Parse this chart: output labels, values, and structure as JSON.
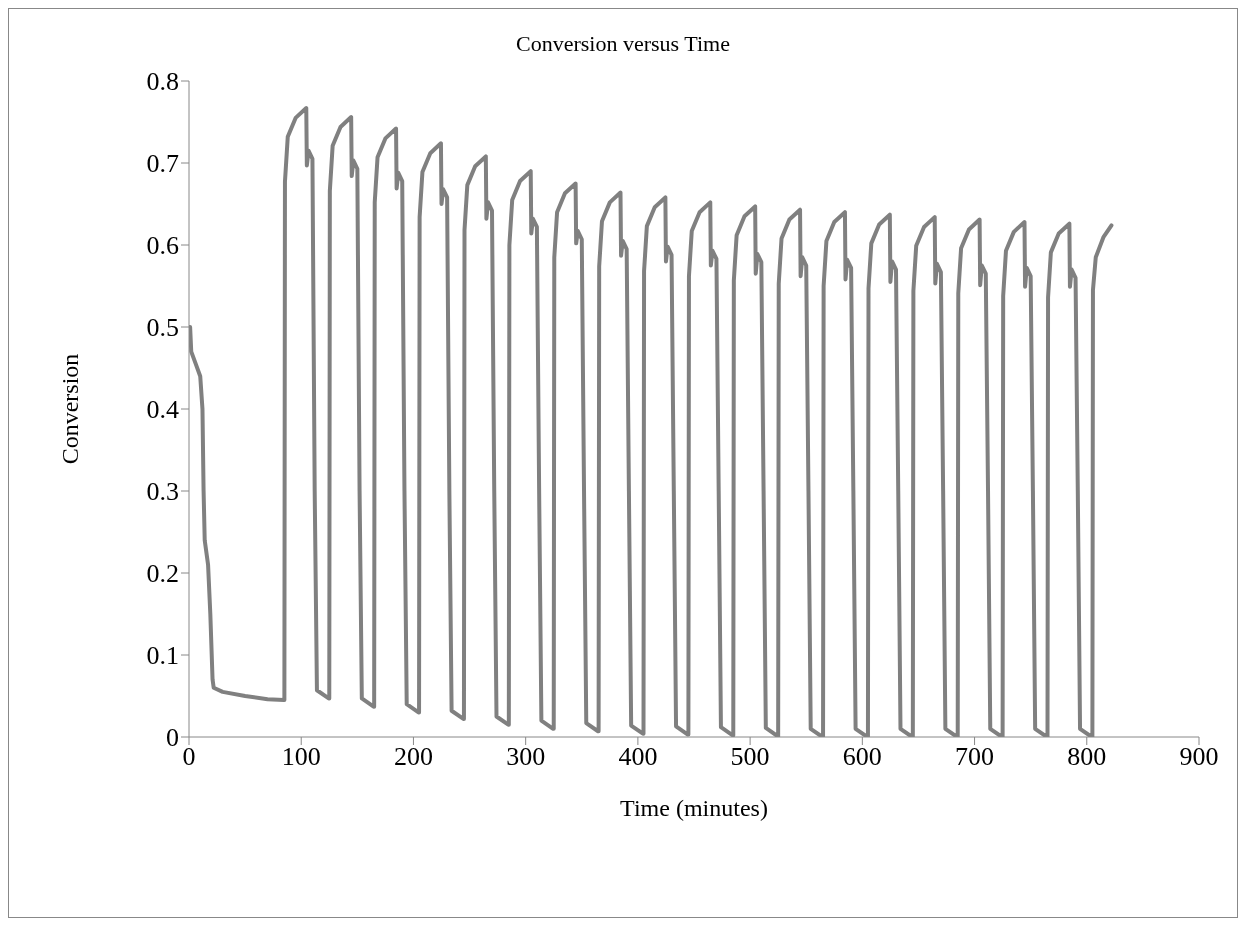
{
  "chart_data": {
    "type": "line",
    "title": "Conversion versus Time",
    "xlabel": "Time (minutes)",
    "ylabel": "Conversion",
    "xlim": [
      0,
      900
    ],
    "xticks": [
      0,
      100,
      200,
      300,
      400,
      500,
      600,
      700,
      800,
      900
    ],
    "ylim": [
      0,
      0.8
    ],
    "yticks": [
      0,
      0.1,
      0.2,
      0.3,
      0.4,
      0.5,
      0.6,
      0.7,
      0.8
    ],
    "grid": false,
    "marker": "none",
    "line_style": "solid",
    "x": [
      0,
      1,
      2,
      6,
      10,
      12,
      13,
      14,
      17,
      19,
      21,
      22,
      30,
      50,
      70,
      84.5,
      85,
      85.5,
      88,
      95,
      104.5,
      105,
      106.5,
      110,
      112,
      114,
      124.5,
      125,
      125.5,
      128,
      135,
      144.5,
      145,
      146.5,
      150,
      152,
      154,
      164.5,
      165,
      165.5,
      168,
      175,
      184.5,
      185,
      186.5,
      190,
      192,
      194,
      204.5,
      205,
      205.5,
      208,
      215,
      224.5,
      225,
      226.5,
      230,
      232,
      234,
      244.5,
      245,
      245.5,
      248,
      255,
      264.5,
      265,
      266.5,
      270,
      272,
      274,
      284.5,
      285,
      285.5,
      288,
      295,
      304.5,
      305,
      306.5,
      310,
      312,
      314,
      324.5,
      325,
      325.5,
      328,
      335,
      344.5,
      345,
      346.5,
      350,
      352,
      354,
      364.5,
      365,
      365.5,
      368,
      375,
      384.5,
      385,
      386.5,
      390,
      392,
      394,
      404.5,
      405,
      405.5,
      408,
      415,
      424.5,
      425,
      426.5,
      430,
      432,
      434,
      444.5,
      445,
      445.5,
      448,
      455,
      464.5,
      465,
      466.5,
      470,
      472,
      474,
      484.5,
      485,
      485.5,
      488,
      495,
      504.5,
      505,
      506.5,
      510,
      512,
      514,
      524.5,
      525,
      525.5,
      528,
      535,
      544.5,
      545,
      546.5,
      550,
      552,
      554,
      564.5,
      565,
      565.5,
      568,
      575,
      584.5,
      585,
      586.5,
      590,
      592,
      594,
      604.5,
      605,
      605.5,
      608,
      615,
      624.5,
      625,
      626.5,
      630,
      632,
      634,
      644.5,
      645,
      645.5,
      648,
      655,
      664.5,
      665,
      666.5,
      670,
      672,
      674,
      684.5,
      685,
      685.5,
      688,
      695,
      704.5,
      705,
      706.5,
      710,
      712,
      714,
      724.5,
      725,
      725.5,
      728,
      735,
      744.5,
      745,
      746.5,
      750,
      752,
      754,
      764.5,
      765,
      765.5,
      768,
      775,
      784.5,
      785,
      786.5,
      790,
      792,
      794,
      804.5,
      805,
      805.5,
      808,
      815,
      822
    ],
    "series": [
      {
        "color": "#808080",
        "values": [
          0.5,
          0.5,
          0.47,
          0.455,
          0.44,
          0.4,
          0.3,
          0.24,
          0.21,
          0.15,
          0.07,
          0.06,
          0.055,
          0.05,
          0.046,
          0.045,
          0.045,
          0.677,
          0.732,
          0.755,
          0.767,
          0.697,
          0.715,
          0.705,
          0.3,
          0.057,
          0.047,
          0.047,
          0.666,
          0.721,
          0.744,
          0.756,
          0.684,
          0.703,
          0.693,
          0.3,
          0.047,
          0.037,
          0.037,
          0.652,
          0.707,
          0.73,
          0.742,
          0.669,
          0.688,
          0.678,
          0.3,
          0.04,
          0.03,
          0.03,
          0.634,
          0.689,
          0.712,
          0.724,
          0.65,
          0.668,
          0.658,
          0.3,
          0.032,
          0.022,
          0.022,
          0.618,
          0.673,
          0.696,
          0.708,
          0.632,
          0.652,
          0.642,
          0.3,
          0.025,
          0.015,
          0.015,
          0.6,
          0.655,
          0.678,
          0.69,
          0.614,
          0.632,
          0.622,
          0.3,
          0.02,
          0.01,
          0.01,
          0.585,
          0.64,
          0.663,
          0.675,
          0.602,
          0.617,
          0.607,
          0.3,
          0.017,
          0.007,
          0.007,
          0.574,
          0.629,
          0.652,
          0.664,
          0.587,
          0.605,
          0.595,
          0.3,
          0.014,
          0.004,
          0.004,
          0.568,
          0.623,
          0.646,
          0.658,
          0.58,
          0.598,
          0.588,
          0.3,
          0.013,
          0.003,
          0.003,
          0.562,
          0.617,
          0.64,
          0.652,
          0.575,
          0.593,
          0.583,
          0.3,
          0.012,
          0.002,
          0.002,
          0.557,
          0.612,
          0.635,
          0.647,
          0.565,
          0.589,
          0.579,
          0.3,
          0.011,
          0.001,
          0.001,
          0.553,
          0.608,
          0.631,
          0.643,
          0.562,
          0.585,
          0.575,
          0.3,
          0.01,
          0,
          0,
          0.55,
          0.605,
          0.628,
          0.64,
          0.558,
          0.582,
          0.572,
          0.3,
          0.01,
          0,
          0,
          0.547,
          0.602,
          0.625,
          0.637,
          0.555,
          0.58,
          0.57,
          0.3,
          0.01,
          0,
          0,
          0.544,
          0.599,
          0.622,
          0.634,
          0.553,
          0.577,
          0.567,
          0.3,
          0.01,
          0,
          0,
          0.541,
          0.596,
          0.619,
          0.631,
          0.551,
          0.575,
          0.565,
          0.3,
          0.01,
          0,
          0,
          0.538,
          0.593,
          0.616,
          0.628,
          0.549,
          0.572,
          0.562,
          0.3,
          0.01,
          0,
          0,
          0.536,
          0.591,
          0.614,
          0.626,
          0.549,
          0.57,
          0.56,
          0.3,
          0.01,
          0,
          0,
          0.545,
          0.585,
          0.61,
          0.624
        ]
      }
    ]
  }
}
